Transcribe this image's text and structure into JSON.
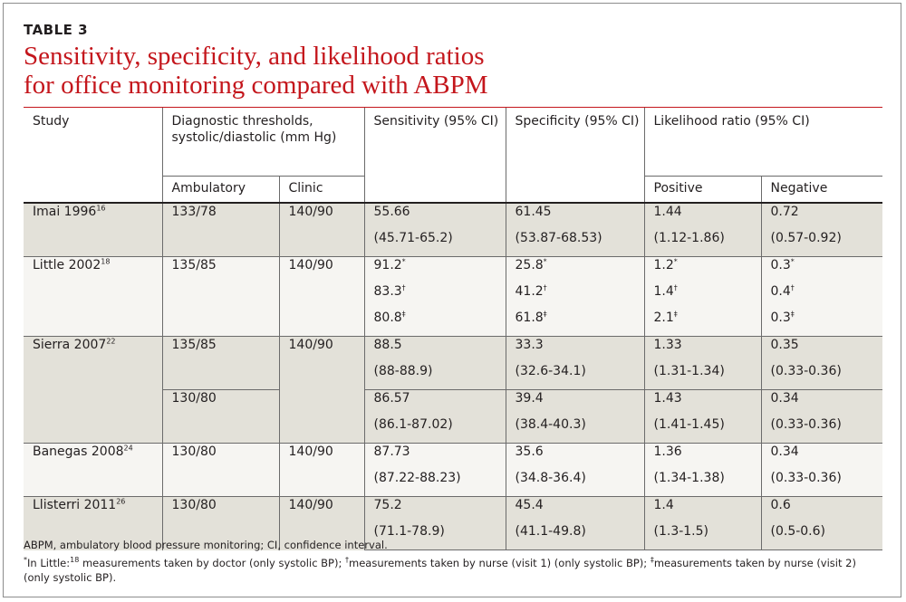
{
  "table_label": "TABLE 3",
  "title_lines": [
    "Sensitivity, specificity, and likelihood ratios",
    "for office monitoring compared with ABPM"
  ],
  "header": {
    "study": "Study",
    "thresholds": "Diagnostic thresholds, systolic/diastolic (mm Hg)",
    "ambulatory": "Ambulatory",
    "clinic": "Clinic",
    "sensitivity": "Sensitivity (95% CI)",
    "specificity": "Specificity (95% CI)",
    "likelihood": "Likelihood ratio (95% CI)",
    "positive": "Positive",
    "negative": "Negative"
  },
  "rows": {
    "imai": {
      "study": "Imai 1996",
      "ref": "16",
      "ambulatory": "133/78",
      "clinic": "140/90",
      "sens": "55.66",
      "sens_ci": "(45.71-65.2)",
      "spec": "61.45",
      "spec_ci": "(53.87-68.53)",
      "pos": "1.44",
      "pos_ci": "(1.12-1.86)",
      "neg": "0.72",
      "neg_ci": "(0.57-0.92)"
    },
    "little": {
      "study": "Little 2002",
      "ref": "18",
      "ambulatory": "135/85",
      "clinic": "140/90",
      "sens": [
        "91.2",
        "83.3",
        "80.8"
      ],
      "spec": [
        "25.8",
        "41.2",
        "61.8"
      ],
      "pos": [
        "1.2",
        "1.4",
        "2.1"
      ],
      "neg": [
        "0.3",
        "0.4",
        "0.3"
      ],
      "marks": [
        "*",
        "†",
        "‡"
      ]
    },
    "sierra": {
      "study": "Sierra 2007",
      "ref": "22",
      "clinic": "140/90",
      "a": {
        "ambulatory": "135/85",
        "sens": "88.5",
        "sens_ci": "(88-88.9)",
        "spec": "33.3",
        "spec_ci": "(32.6-34.1)",
        "pos": "1.33",
        "pos_ci": "(1.31-1.34)",
        "neg": "0.35",
        "neg_ci": "(0.33-0.36)"
      },
      "b": {
        "ambulatory": "130/80",
        "sens": "86.57",
        "sens_ci": "(86.1-87.02)",
        "spec": "39.4",
        "spec_ci": "(38.4-40.3)",
        "pos": "1.43",
        "pos_ci": "(1.41-1.45)",
        "neg": "0.34",
        "neg_ci": "(0.33-0.36)"
      }
    },
    "banegas": {
      "study": "Banegas 2008",
      "ref": "24",
      "ambulatory": "130/80",
      "clinic": "140/90",
      "sens": "87.73",
      "sens_ci": "(87.22-88.23)",
      "spec": "35.6",
      "spec_ci": "(34.8-36.4)",
      "pos": "1.36",
      "pos_ci": "(1.34-1.38)",
      "neg": "0.34",
      "neg_ci": "(0.33-0.36)"
    },
    "llisterri": {
      "study": "Llisterri 2011",
      "ref": "26",
      "ambulatory": "130/80",
      "clinic": "140/90",
      "sens": "75.2",
      "sens_ci": "(71.1-78.9)",
      "spec": "45.4",
      "spec_ci": "(41.1-49.8)",
      "pos": "1.4",
      "pos_ci": "(1.3-1.5)",
      "neg": "0.6",
      "neg_ci": "(0.5-0.6)"
    }
  },
  "footnotes": {
    "abbrev": "ABPM, ambulatory blood pressure monitoring; CI, confidence interval.",
    "mark_star": "*",
    "little_prefix": "In Little:",
    "little_ref": "18",
    "part1": " measurements taken by doctor (only systolic BP); ",
    "mark_dagger": "†",
    "part2": "measurements taken by nurse (visit 1) (only systolic BP); ",
    "mark_ddagger": "‡",
    "part3": "measurements taken by nurse (visit 2) (only systolic BP)."
  },
  "colors": {
    "title_red": "#c4161c",
    "shaded_row": "#e3e1d9",
    "light_row": "#f6f5f2"
  }
}
